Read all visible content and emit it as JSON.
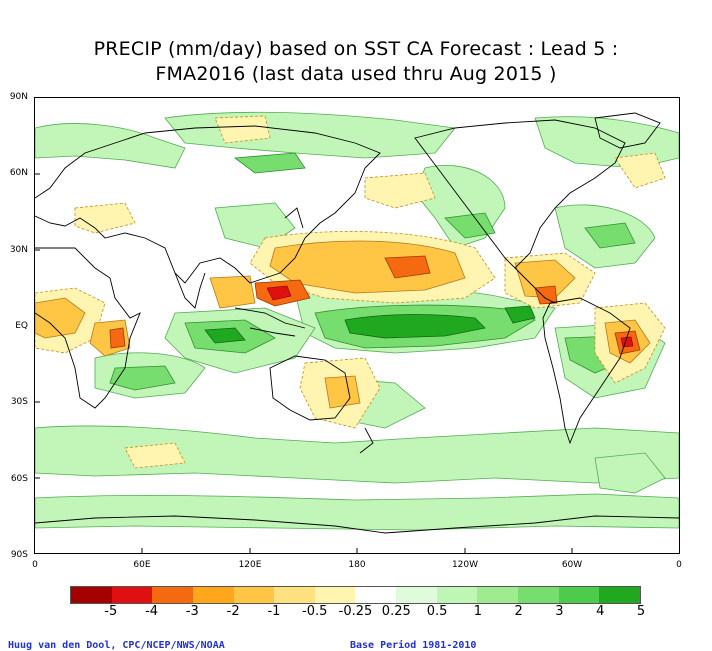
{
  "title": {
    "line1": "PRECIP (mm/day) based on SST CA Forecast : Lead 5 :",
    "line2": "FMA2016 (last data used thru Aug 2015 )"
  },
  "axes": {
    "y": [
      "90N",
      "60N",
      "30N",
      "EQ",
      "30S",
      "60S",
      "90S"
    ],
    "x": [
      "0",
      "60E",
      "120E",
      "180",
      "120W",
      "60W",
      "0"
    ]
  },
  "legend": {
    "colors": [
      "#a50000",
      "#e01010",
      "#f56a10",
      "#ffa61a",
      "#ffc645",
      "#ffe27f",
      "#fff5b0",
      "#ffffff",
      "#e0fbdc",
      "#bff5b5",
      "#9eeb90",
      "#78dd6f",
      "#4ccc4a",
      "#20a820"
    ],
    "labels": [
      "-5",
      "-4",
      "-3",
      "-2",
      "-1",
      "-0.5",
      "-0.25",
      "0.25",
      "0.5",
      "1",
      "2",
      "3",
      "4",
      "5"
    ]
  },
  "footer": {
    "left": "Huug van den Dool, CPC/NCEP/NWS/NOAA",
    "right": "Base Period 1981-2010"
  }
}
